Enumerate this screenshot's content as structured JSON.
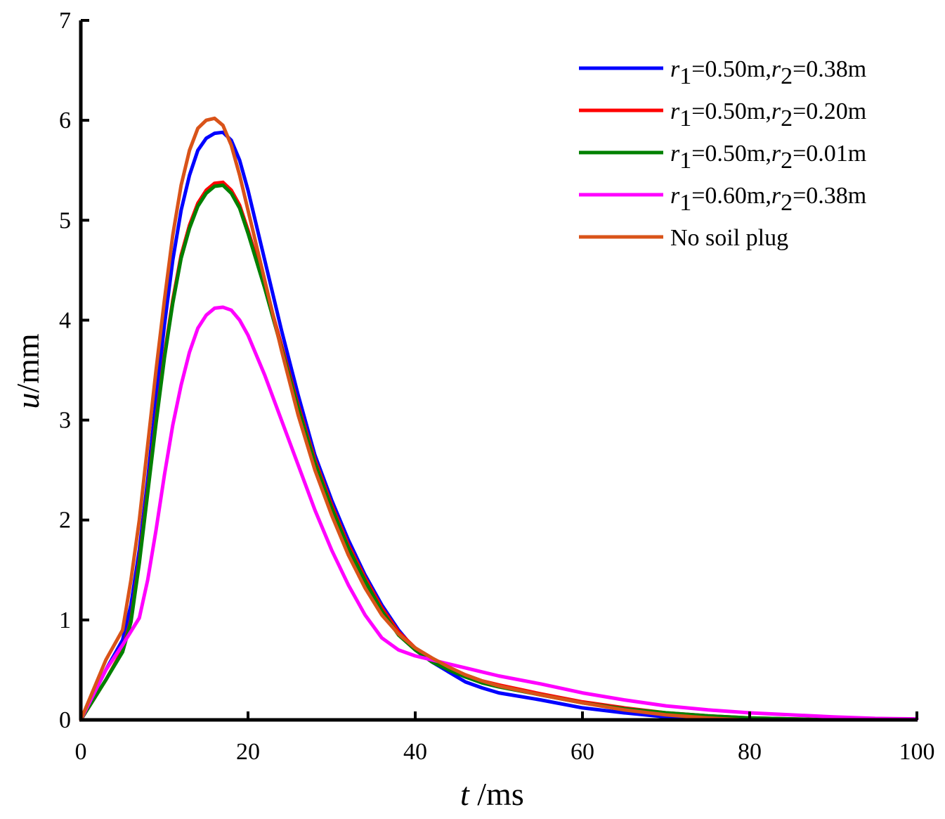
{
  "chart_data": {
    "type": "line",
    "title": "",
    "xlabel": {
      "var": "t",
      "unit": " /ms"
    },
    "ylabel": {
      "var": "u",
      "unit": "/mm"
    },
    "xlim": [
      0,
      100
    ],
    "ylim": [
      0,
      7
    ],
    "xticks": [
      0,
      20,
      40,
      60,
      80,
      100
    ],
    "yticks": [
      0,
      1,
      2,
      3,
      4,
      5,
      6,
      7
    ],
    "grid": false,
    "legend_position": "top-right",
    "series": [
      {
        "name": "r1=0.50m,r2=0.38m",
        "legend": {
          "a": "r",
          "a_sub": "1",
          "b": "=0.50m,",
          "c": "r",
          "c_sub": "2",
          "d": "=0.38m"
        },
        "color": "#0000ff",
        "x": [
          0,
          3,
          5,
          6,
          7,
          8,
          9,
          10,
          11,
          12,
          13,
          14,
          15,
          16,
          17,
          18,
          19,
          20,
          22,
          24,
          26,
          28,
          30,
          32,
          34,
          36,
          38,
          40,
          42,
          44,
          46,
          48,
          50,
          55,
          60,
          65,
          70,
          75,
          79
        ],
        "y": [
          0,
          0.5,
          0.8,
          1.15,
          1.7,
          2.4,
          3.2,
          3.95,
          4.6,
          5.1,
          5.45,
          5.7,
          5.82,
          5.87,
          5.88,
          5.8,
          5.6,
          5.3,
          4.6,
          3.9,
          3.25,
          2.65,
          2.2,
          1.8,
          1.45,
          1.15,
          0.9,
          0.7,
          0.58,
          0.48,
          0.38,
          0.32,
          0.27,
          0.2,
          0.12,
          0.07,
          0.03,
          0.01,
          0.0
        ]
      },
      {
        "name": "r1=0.50m,r2=0.20m",
        "legend": {
          "a": "r",
          "a_sub": "1",
          "b": "=0.50m,",
          "c": "r",
          "c_sub": "2",
          "d": "=0.20m"
        },
        "color": "#ff0000",
        "x": [
          0,
          3,
          5,
          6,
          7,
          8,
          9,
          10,
          11,
          12,
          13,
          14,
          15,
          16,
          17,
          18,
          19,
          20,
          22,
          24,
          26,
          28,
          30,
          32,
          34,
          36,
          38,
          40,
          42,
          44,
          46,
          48,
          50,
          55,
          60,
          65,
          70,
          75,
          80,
          85,
          90
        ],
        "y": [
          0,
          0.4,
          0.7,
          1.0,
          1.6,
          2.3,
          3.0,
          3.65,
          4.2,
          4.65,
          4.95,
          5.17,
          5.3,
          5.37,
          5.38,
          5.3,
          5.15,
          4.9,
          4.35,
          3.75,
          3.15,
          2.6,
          2.15,
          1.75,
          1.42,
          1.12,
          0.88,
          0.72,
          0.6,
          0.52,
          0.45,
          0.39,
          0.35,
          0.26,
          0.18,
          0.12,
          0.07,
          0.04,
          0.02,
          0.01,
          0.0
        ]
      },
      {
        "name": "r1=0.50m,r2=0.01m",
        "legend": {
          "a": "r",
          "a_sub": "1",
          "b": "=0.50m,",
          "c": "r",
          "c_sub": "2",
          "d": "=0.01m"
        },
        "color": "#008000",
        "x": [
          0,
          3,
          5,
          6,
          7,
          8,
          9,
          10,
          11,
          12,
          13,
          14,
          15,
          16,
          17,
          18,
          19,
          20,
          22,
          24,
          26,
          28,
          30,
          32,
          34,
          36,
          38,
          40,
          42,
          44,
          46,
          48,
          50,
          55,
          60,
          65,
          70,
          75,
          80,
          85,
          90
        ],
        "y": [
          0,
          0.4,
          0.68,
          0.98,
          1.57,
          2.27,
          2.97,
          3.62,
          4.17,
          4.62,
          4.92,
          5.14,
          5.27,
          5.34,
          5.35,
          5.27,
          5.12,
          4.87,
          4.32,
          3.72,
          3.12,
          2.57,
          2.12,
          1.72,
          1.39,
          1.09,
          0.85,
          0.7,
          0.58,
          0.5,
          0.43,
          0.37,
          0.33,
          0.25,
          0.17,
          0.11,
          0.07,
          0.04,
          0.02,
          0.01,
          0.0
        ]
      },
      {
        "name": "r1=0.60m,r2=0.38m",
        "legend": {
          "a": "r",
          "a_sub": "1",
          "b": "=0.60m,",
          "c": "r",
          "c_sub": "2",
          "d": "=0.38m"
        },
        "color": "#ff00ff",
        "x": [
          0,
          3,
          5,
          7,
          8,
          9,
          10,
          11,
          12,
          13,
          14,
          15,
          16,
          17,
          18,
          19,
          20,
          22,
          24,
          26,
          28,
          30,
          32,
          34,
          36,
          38,
          40,
          42,
          44,
          46,
          48,
          50,
          55,
          60,
          65,
          70,
          75,
          80,
          85,
          90,
          95,
          100
        ],
        "y": [
          0,
          0.5,
          0.75,
          1.02,
          1.4,
          1.9,
          2.45,
          2.95,
          3.35,
          3.68,
          3.92,
          4.05,
          4.12,
          4.13,
          4.1,
          4.0,
          3.85,
          3.45,
          3.0,
          2.55,
          2.1,
          1.7,
          1.35,
          1.05,
          0.82,
          0.7,
          0.64,
          0.6,
          0.56,
          0.52,
          0.48,
          0.44,
          0.36,
          0.27,
          0.2,
          0.14,
          0.1,
          0.07,
          0.05,
          0.03,
          0.015,
          0.01
        ]
      },
      {
        "name": "No soil plug",
        "legend": {
          "text": "No soil plug"
        },
        "color": "#d95319",
        "x": [
          0,
          3,
          5,
          6,
          7,
          8,
          9,
          10,
          11,
          12,
          13,
          14,
          15,
          16,
          17,
          18,
          19,
          20,
          22,
          24,
          26,
          28,
          30,
          32,
          34,
          36,
          38,
          40,
          42,
          44,
          46,
          48,
          50,
          55,
          60,
          65,
          70,
          75,
          79
        ],
        "y": [
          0,
          0.6,
          0.9,
          1.4,
          2.0,
          2.75,
          3.5,
          4.2,
          4.85,
          5.35,
          5.7,
          5.92,
          6.0,
          6.02,
          5.95,
          5.75,
          5.45,
          5.1,
          4.4,
          3.7,
          3.05,
          2.5,
          2.05,
          1.65,
          1.32,
          1.05,
          0.86,
          0.72,
          0.62,
          0.53,
          0.45,
          0.39,
          0.34,
          0.25,
          0.17,
          0.1,
          0.05,
          0.02,
          0.0
        ]
      }
    ]
  }
}
